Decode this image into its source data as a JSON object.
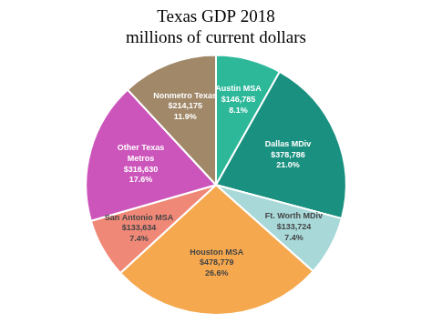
{
  "chart_data": {
    "type": "pie",
    "title": "Texas GDP 2018\nmillions of current dollars",
    "categories": [
      "Austin MSA",
      "Dallas MDiv",
      "Ft. Worth MDiv",
      "Houston MSA",
      "San Antonio MSA",
      "Other Texas\nMetros",
      "Nonmetro Texas"
    ],
    "values": [
      146785,
      378786,
      133724,
      478779,
      133634,
      316630,
      214175
    ],
    "value_labels": [
      "$146,785\n8.1%",
      "$378,786\n21.0%",
      "$133,724\n7.4%",
      "$478,779\n26.6%",
      "$133,634\n7.4%",
      "$316,630\n17.6%",
      "$214,175\n11.9%"
    ],
    "colors": [
      "#2db89a",
      "#1a9080",
      "#a8d8d8",
      "#f5a84e",
      "#f08878",
      "#cc55bb",
      "#a08868"
    ],
    "data_labels": true,
    "legend": false
  }
}
